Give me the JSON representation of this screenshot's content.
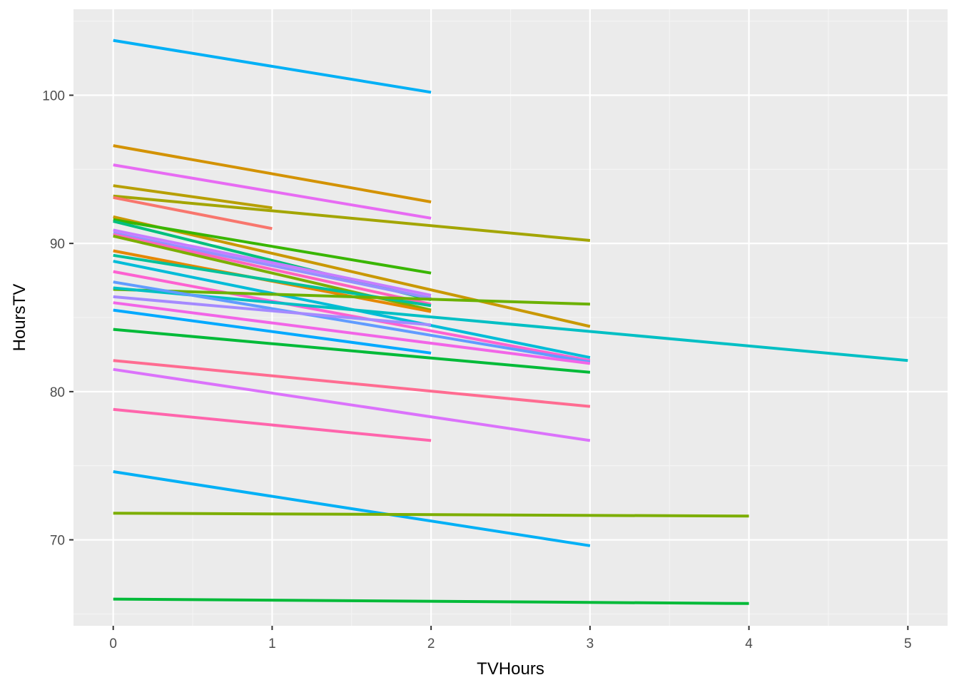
{
  "chart_data": {
    "type": "line",
    "xlabel": "TVHours",
    "ylabel": "HoursTV",
    "xlim": [
      -0.25,
      5.25
    ],
    "ylim": [
      64.2,
      105.8
    ],
    "x_ticks": [
      0,
      1,
      2,
      3,
      4,
      5
    ],
    "y_ticks": [
      70,
      80,
      90,
      100
    ],
    "grid": true,
    "legend": "none",
    "series": [
      {
        "color": "#00B0F6",
        "x": [
          0,
          2
        ],
        "y": [
          103.7,
          100.2
        ]
      },
      {
        "color": "#D39200",
        "x": [
          0,
          2
        ],
        "y": [
          96.6,
          92.8
        ]
      },
      {
        "color": "#E76BF3",
        "x": [
          0,
          2
        ],
        "y": [
          95.3,
          91.7
        ]
      },
      {
        "color": "#B79F00",
        "x": [
          0,
          1
        ],
        "y": [
          93.9,
          92.4
        ]
      },
      {
        "color": "#A3A500",
        "x": [
          0,
          3
        ],
        "y": [
          93.2,
          90.2
        ]
      },
      {
        "color": "#F8766D",
        "x": [
          0,
          1
        ],
        "y": [
          93.1,
          91.0
        ]
      },
      {
        "color": "#C99800",
        "x": [
          0,
          3
        ],
        "y": [
          91.8,
          84.4
        ]
      },
      {
        "color": "#39B600",
        "x": [
          0,
          2
        ],
        "y": [
          91.6,
          88.0
        ]
      },
      {
        "color": "#00BF7D",
        "x": [
          0,
          2
        ],
        "y": [
          91.5,
          86.2
        ]
      },
      {
        "color": "#C77CFF",
        "x": [
          0,
          2
        ],
        "y": [
          90.9,
          86.5
        ]
      },
      {
        "color": "#9590FF",
        "x": [
          0,
          2
        ],
        "y": [
          90.7,
          86.3
        ]
      },
      {
        "color": "#FF62BC",
        "x": [
          0,
          2
        ],
        "y": [
          90.6,
          85.9
        ]
      },
      {
        "color": "#7CAE00",
        "x": [
          0,
          2
        ],
        "y": [
          90.5,
          85.5
        ]
      },
      {
        "color": "#E58700",
        "x": [
          0,
          2
        ],
        "y": [
          89.5,
          85.4
        ]
      },
      {
        "color": "#00C19A",
        "x": [
          0,
          2
        ],
        "y": [
          89.2,
          85.8
        ]
      },
      {
        "color": "#00BCD8",
        "x": [
          0,
          3
        ],
        "y": [
          88.8,
          82.3
        ]
      },
      {
        "color": "#FD61D1",
        "x": [
          0,
          3
        ],
        "y": [
          88.1,
          82.1
        ]
      },
      {
        "color": "#6BB100",
        "x": [
          0,
          3
        ],
        "y": [
          86.9,
          85.9
        ]
      },
      {
        "color": "#00BFC4",
        "x": [
          0,
          5
        ],
        "y": [
          87.0,
          82.1
        ]
      },
      {
        "color": "#619CFF",
        "x": [
          0,
          3
        ],
        "y": [
          87.4,
          82.0
        ]
      },
      {
        "color": "#A58AFF",
        "x": [
          0,
          2
        ],
        "y": [
          86.4,
          84.5
        ]
      },
      {
        "color": "#F265E7",
        "x": [
          0,
          3
        ],
        "y": [
          86.0,
          81.9
        ]
      },
      {
        "color": "#00A9FF",
        "x": [
          0,
          2
        ],
        "y": [
          85.5,
          82.6
        ]
      },
      {
        "color": "#00BA38",
        "x": [
          0,
          3
        ],
        "y": [
          84.2,
          81.3
        ]
      },
      {
        "color": "#FF6C91",
        "x": [
          0,
          3
        ],
        "y": [
          82.1,
          79.0
        ]
      },
      {
        "color": "#DB72FB",
        "x": [
          0,
          3
        ],
        "y": [
          81.5,
          76.7
        ]
      },
      {
        "color": "#FF65AC",
        "x": [
          0,
          2
        ],
        "y": [
          78.8,
          76.7
        ]
      },
      {
        "color": "#00B0F6",
        "x": [
          0,
          3
        ],
        "y": [
          74.6,
          69.6
        ]
      },
      {
        "color": "#7CAE00",
        "x": [
          0,
          4
        ],
        "y": [
          71.8,
          71.6
        ]
      },
      {
        "color": "#00BA38",
        "x": [
          0,
          4
        ],
        "y": [
          66.0,
          65.7
        ]
      }
    ]
  },
  "colors": {
    "panel_background": "#EBEBEB",
    "grid_major": "#FFFFFF",
    "grid_minor": "#F5F5F5",
    "tick_text": "#4D4D4D",
    "tick_mark": "#333333"
  }
}
